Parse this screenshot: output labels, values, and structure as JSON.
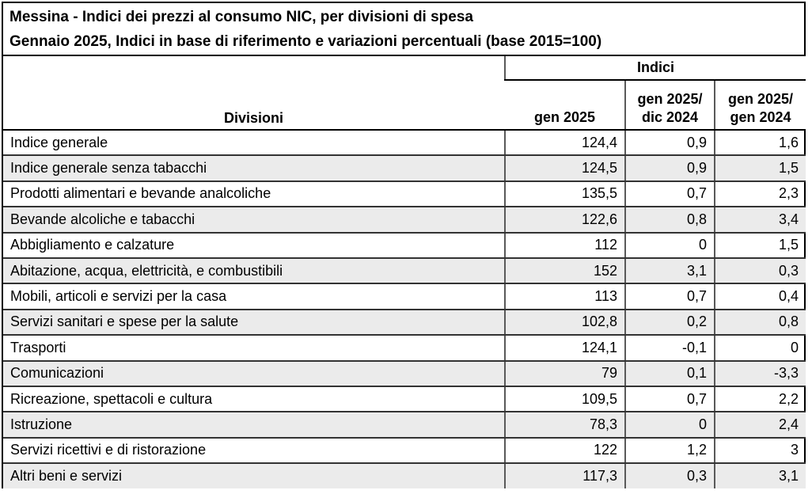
{
  "title": {
    "line1": "Messina - Indici dei prezzi al consumo NIC, per divisioni di spesa",
    "line2": "Gennaio 2025, Indici in base di riferimento e variazioni percentuali (base 2015=100)"
  },
  "table": {
    "division_column_header": "Divisioni",
    "group_header": "Indici",
    "col_gen_2025": "gen 2025",
    "col_gen_2025_dic_2024": "gen 2025/\ndic 2024",
    "col_gen_2025_gen_2024": "gen 2025/\ngen 2024",
    "rows": [
      {
        "name": "Indice generale",
        "gen2025": "124,4",
        "var_dic": "0,9",
        "var_gen": "1,6"
      },
      {
        "name": "Indice generale senza tabacchi",
        "gen2025": "124,5",
        "var_dic": "0,9",
        "var_gen": "1,5"
      },
      {
        "name": "Prodotti alimentari e bevande analcoliche",
        "gen2025": "135,5",
        "var_dic": "0,7",
        "var_gen": "2,3"
      },
      {
        "name": "Bevande alcoliche e tabacchi",
        "gen2025": "122,6",
        "var_dic": "0,8",
        "var_gen": "3,4"
      },
      {
        "name": "Abbigliamento e calzature",
        "gen2025": "112",
        "var_dic": "0",
        "var_gen": "1,5"
      },
      {
        "name": "Abitazione, acqua, elettricità, e combustibili",
        "gen2025": "152",
        "var_dic": "3,1",
        "var_gen": "0,3"
      },
      {
        "name": "Mobili, articoli e servizi per la casa",
        "gen2025": "113",
        "var_dic": "0,7",
        "var_gen": "0,4"
      },
      {
        "name": "Servizi sanitari e spese per la salute",
        "gen2025": "102,8",
        "var_dic": "0,2",
        "var_gen": "0,8"
      },
      {
        "name": "Trasporti",
        "gen2025": "124,1",
        "var_dic": "-0,1",
        "var_gen": "0"
      },
      {
        "name": "Comunicazioni",
        "gen2025": "79",
        "var_dic": "0,1",
        "var_gen": "-3,3"
      },
      {
        "name": "Ricreazione, spettacoli e cultura",
        "gen2025": "109,5",
        "var_dic": "0,7",
        "var_gen": "2,2"
      },
      {
        "name": "Istruzione",
        "gen2025": "78,3",
        "var_dic": "0",
        "var_gen": "2,4"
      },
      {
        "name": "Servizi ricettivi e di ristorazione",
        "gen2025": "122",
        "var_dic": "1,2",
        "var_gen": "3"
      },
      {
        "name": "Altri beni e servizi",
        "gen2025": "117,3",
        "var_dic": "0,3",
        "var_gen": "3,1"
      }
    ]
  },
  "colors": {
    "row_stripe": "#ebebeb",
    "outer_border": "#000000",
    "vertical_grid": "#595959",
    "horizontal_grid": "#333333"
  }
}
